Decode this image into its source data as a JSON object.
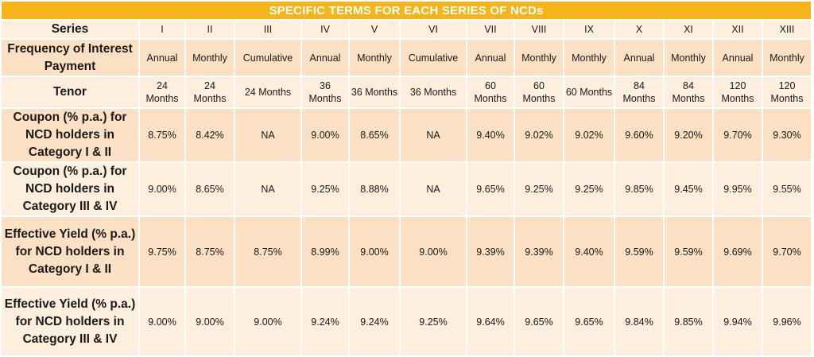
{
  "title": "SPECIFIC TERMS FOR EACH SERIES OF NCDs",
  "rows": [
    {
      "label": "Series",
      "values": [
        "I",
        "II",
        "III",
        "IV",
        "V",
        "VI",
        "VII",
        "VIII",
        "IX",
        "X",
        "XI",
        "XII",
        "XIII"
      ]
    },
    {
      "label": "Frequency of Interest Payment",
      "values": [
        "Annual",
        "Monthly",
        "Cumulative",
        "Annual",
        "Monthly",
        "Cumulative",
        "Annual",
        "Monthly",
        "Monthly",
        "Annual",
        "Monthly",
        "Annual",
        "Monthly"
      ]
    },
    {
      "label": "Tenor",
      "values": [
        "24 Months",
        "24 Months",
        "24 Months",
        "36 Months",
        "36 Months",
        "36 Months",
        "60 Months",
        "60 Months",
        "60 Months",
        "84 Months",
        "84 Months",
        "120 Months",
        "120 Months"
      ]
    },
    {
      "label": "Coupon (% p.a.) for NCD holders in Category I & II",
      "values": [
        "8.75%",
        "8.42%",
        "NA",
        "9.00%",
        "8.65%",
        "NA",
        "9.40%",
        "9.02%",
        "9.02%",
        "9.60%",
        "9.20%",
        "9.70%",
        "9.30%"
      ]
    },
    {
      "label": "Coupon (% p.a.) for NCD holders in Category III & IV",
      "values": [
        "9.00%",
        "8.65%",
        "NA",
        "9.25%",
        "8.88%",
        "NA",
        "9.65%",
        "9.25%",
        "9.25%",
        "9.85%",
        "9.45%",
        "9.95%",
        "9.55%"
      ]
    },
    {
      "label": "Effective Yield (% p.a.) for NCD holders in Category I & II",
      "values": [
        "9.75%",
        "8.75%",
        "8.75%",
        "8.99%",
        "9.00%",
        "9.00%",
        "9.39%",
        "9.39%",
        "9.40%",
        "9.59%",
        "9.59%",
        "9.69%",
        "9.70%"
      ]
    },
    {
      "label": "Effective Yield (% p.a.) for NCD holders in Category III & IV",
      "values": [
        "9.00%",
        "9.00%",
        "9.00%",
        "9.24%",
        "9.24%",
        "9.25%",
        "9.64%",
        "9.65%",
        "9.65%",
        "9.84%",
        "9.85%",
        "9.94%",
        "9.96%"
      ]
    }
  ],
  "colors": {
    "header": "#f5b41a",
    "row_light": "#fdeedd",
    "row_dark": "#fbe0c4"
  }
}
